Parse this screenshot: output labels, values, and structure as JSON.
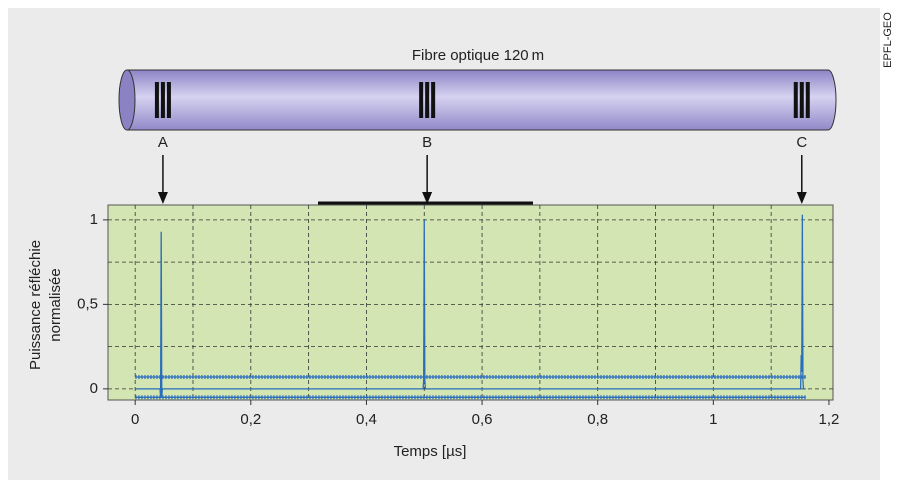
{
  "chart_data": {
    "type": "line",
    "title": "Fibre optique 120 m",
    "xlabel": "Temps [µs]",
    "ylabel": [
      "Puissance réfléchie",
      "normalisée"
    ],
    "credit": "EPFL-GEO",
    "markers": [
      {
        "label": "A",
        "x": 0.048
      },
      {
        "label": "B",
        "x": 0.505
      },
      {
        "label": "C",
        "x": 1.153
      }
    ],
    "xlim": [
      -0.047,
      1.207
    ],
    "ylim": [
      -0.066,
      1.088
    ],
    "xticks": [
      0,
      {
        "value": 0.2,
        "label": "0,2"
      },
      {
        "value": 0.4,
        "label": "0,4"
      },
      {
        "value": 0.6,
        "label": "0,6"
      },
      {
        "value": 0.8,
        "label": "0,8"
      },
      1,
      {
        "value": 1.2,
        "label": "1,2"
      }
    ],
    "yticks": [
      0,
      {
        "value": 0.5,
        "label": "0,5"
      },
      1
    ],
    "xgrid": [
      0,
      0.1,
      0.2,
      0.3,
      0.4,
      0.5,
      0.6,
      0.7,
      0.8,
      0.9,
      1,
      1.1
    ],
    "ygrid": [
      0,
      0.25,
      0.5,
      0.75,
      1
    ],
    "grid": true,
    "series": [
      {
        "color": "#2a6ebb",
        "x": [
          0,
          0.043,
          0.044,
          0.045,
          0.046,
          0.047,
          0.498,
          0.499,
          0.5,
          0.501,
          0.502,
          1.151,
          1.152,
          1.153,
          1.154,
          1.155,
          1.156,
          1.16
        ],
        "values": [
          0,
          0,
          -0.05,
          0.93,
          -0.05,
          0,
          0,
          0.05,
          1.0,
          0.05,
          0,
          0,
          0.2,
          0.1,
          1.03,
          0.05,
          0,
          0
        ]
      },
      {
        "color": "#2a6ebb",
        "x": [
          0,
          1.16
        ],
        "values": [
          0.07,
          0.07
        ]
      },
      {
        "color": "#2a6ebb",
        "x": [
          0,
          1.16
        ],
        "values": [
          -0.05,
          -0.05
        ]
      }
    ]
  }
}
